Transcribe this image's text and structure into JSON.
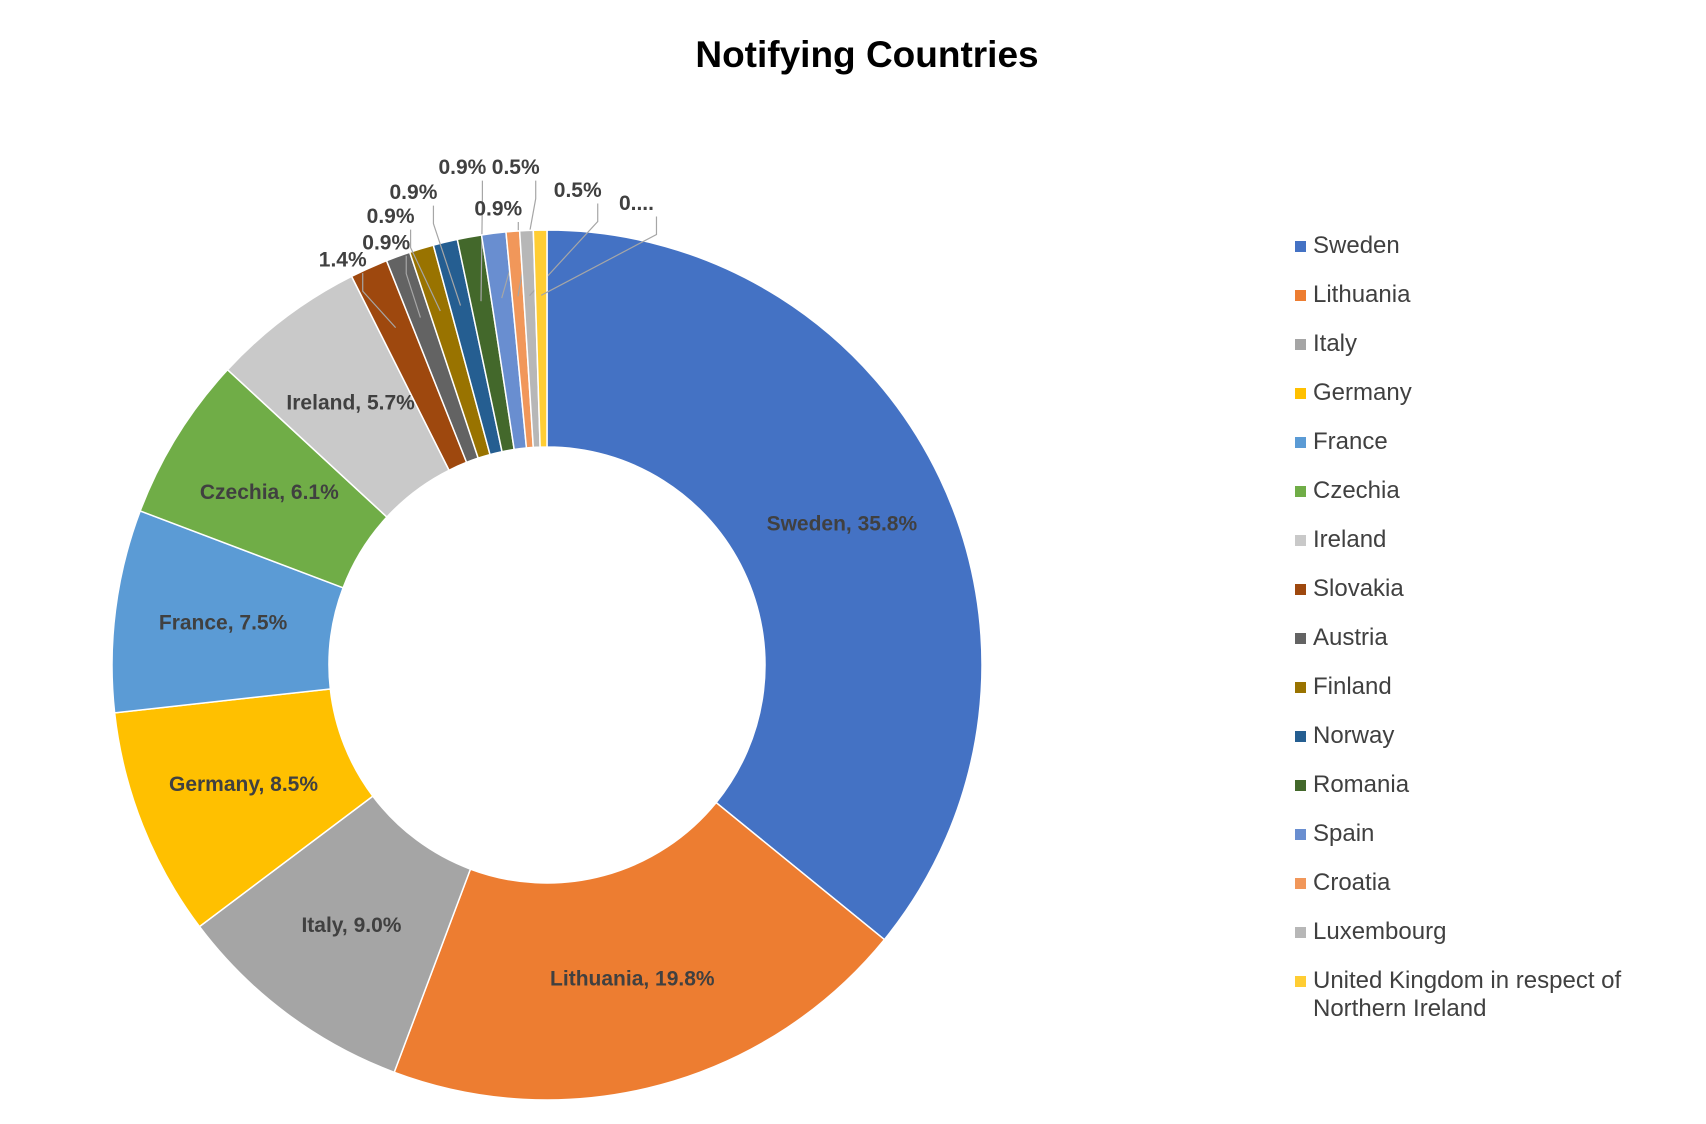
{
  "chart_data": {
    "type": "donut",
    "title": "Notifying Countries",
    "categories": [
      "Sweden",
      "Lithuania",
      "Italy",
      "Germany",
      "France",
      "Czechia",
      "Ireland",
      "Slovakia",
      "Austria",
      "Finland",
      "Norway",
      "Romania",
      "Spain",
      "Croatia",
      "Luxembourg",
      "United Kingdom in respect of Northern Ireland"
    ],
    "values": [
      35.8,
      19.8,
      9.0,
      8.5,
      7.5,
      6.1,
      5.7,
      1.4,
      0.9,
      0.9,
      0.9,
      0.9,
      0.9,
      0.5,
      0.5,
      0.5
    ],
    "value_labels": [
      "Sweden, 35.8%",
      "Lithuania, 19.8%",
      "Italy, 9.0%",
      "Germany, 8.5%",
      "France, 7.5%",
      "Czechia, 6.1%",
      "Ireland, 5.7%",
      "1.4%",
      "0.9%",
      "0.9%",
      "0.9%",
      "0.9%",
      "0.9%",
      "0.5%",
      "0.5%",
      "0...."
    ],
    "colors": [
      "#4472c4",
      "#ed7d31",
      "#a5a5a5",
      "#ffc000",
      "#5b9bd5",
      "#70ad47",
      "#c9c9c9",
      "#9e480e",
      "#636363",
      "#997300",
      "#255e91",
      "#43682b",
      "#698ed0",
      "#f1975a",
      "#b7b7b7",
      "#ffcd33"
    ],
    "legend": "right"
  }
}
